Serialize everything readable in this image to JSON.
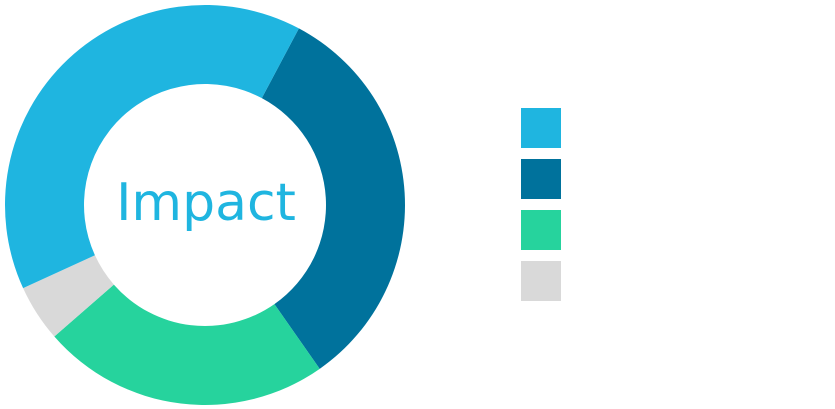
{
  "chart_data": {
    "type": "pie",
    "variant": "donut",
    "center_label": "Impact",
    "center_label_color": "#1fb5e0",
    "start_angle_deg": 28,
    "values": [
      32.5,
      23.3,
      4.6,
      39.6
    ],
    "colors": [
      "#00729c",
      "#26d39d",
      "#d9d9d9",
      "#1fb5e0"
    ],
    "legend": {
      "placement": "right",
      "swatch_colors": [
        "#1fb5e0",
        "#00729c",
        "#26d39d",
        "#d9d9d9"
      ]
    }
  }
}
